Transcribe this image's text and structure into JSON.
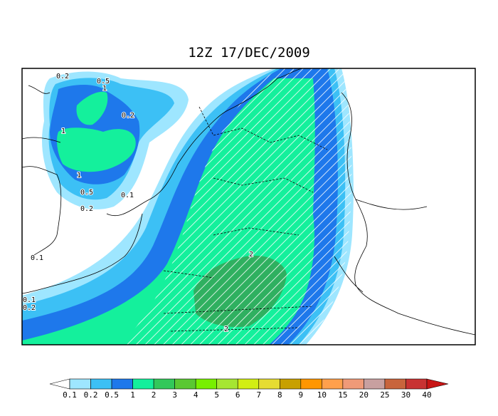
{
  "title": "12Z 17/DEC/2009",
  "contour_labels": [
    "0.2",
    "0.5",
    "1",
    "0.2",
    "1",
    "1",
    "0.5",
    "0.1",
    "0.2",
    "0.1",
    "0.1",
    "0.2",
    "2",
    "2"
  ],
  "colorbar": {
    "levels": [
      0.1,
      0.2,
      0.5,
      1,
      2,
      3,
      4,
      5,
      6,
      7,
      8,
      9,
      10,
      15,
      20,
      25,
      30,
      40
    ],
    "colors": [
      "#9ee6ff",
      "#3cc0f5",
      "#1e78eb",
      "#14f09c",
      "#32c85a",
      "#5ac832",
      "#78f000",
      "#a6e632",
      "#d2ee14",
      "#e6dc32",
      "#c8a000",
      "#ff9600",
      "#ffa04c",
      "#f09a78",
      "#c8a0a0",
      "#c8643c",
      "#c83232"
    ],
    "under_color": "#ffffff",
    "over_color": "#c81414"
  }
}
